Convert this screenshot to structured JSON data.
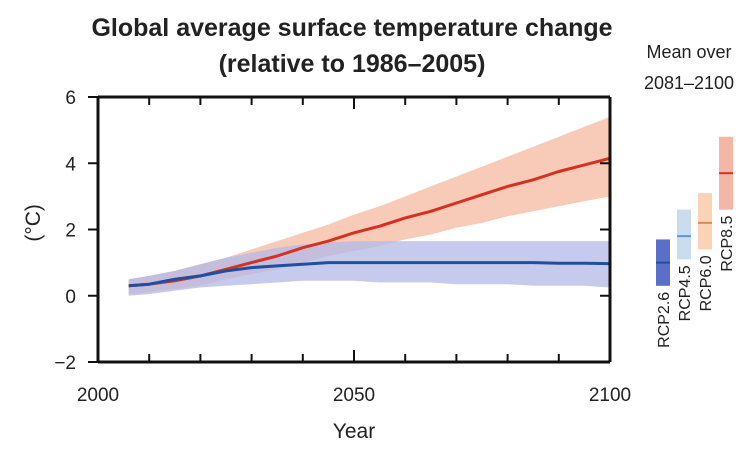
{
  "chart_data": {
    "type": "line",
    "title": "Global average surface temperature change",
    "subtitle": "(relative to 1986–2005)",
    "xlabel": "Year",
    "ylabel": "(°C)",
    "xlim": [
      2000,
      2100
    ],
    "ylim": [
      -2,
      6
    ],
    "x_ticks": [
      2000,
      2050,
      2100
    ],
    "y_ticks": [
      -2,
      0,
      2,
      4,
      6
    ],
    "series": [
      {
        "name": "RCP8.5",
        "color": "#d7301f",
        "band_color": "#f6b9a2",
        "x": [
          2006,
          2010,
          2015,
          2020,
          2025,
          2030,
          2035,
          2040,
          2045,
          2050,
          2055,
          2060,
          2065,
          2070,
          2075,
          2080,
          2085,
          2090,
          2095,
          2100
        ],
        "mean": [
          0.3,
          0.35,
          0.45,
          0.6,
          0.8,
          1.0,
          1.2,
          1.45,
          1.65,
          1.9,
          2.1,
          2.35,
          2.55,
          2.8,
          3.05,
          3.3,
          3.5,
          3.75,
          3.95,
          4.15
        ],
        "lower": [
          0.05,
          0.1,
          0.2,
          0.3,
          0.5,
          0.65,
          0.8,
          1.0,
          1.2,
          1.35,
          1.5,
          1.7,
          1.85,
          2.05,
          2.2,
          2.4,
          2.55,
          2.7,
          2.85,
          3.0
        ],
        "upper": [
          0.5,
          0.6,
          0.75,
          0.95,
          1.15,
          1.4,
          1.65,
          1.9,
          2.15,
          2.45,
          2.7,
          3.0,
          3.3,
          3.6,
          3.9,
          4.2,
          4.5,
          4.8,
          5.1,
          5.4
        ]
      },
      {
        "name": "RCP2.6",
        "color": "#1f4fa0",
        "band_color": "#b3b9e8",
        "x": [
          2006,
          2010,
          2015,
          2020,
          2025,
          2030,
          2035,
          2040,
          2045,
          2050,
          2055,
          2060,
          2065,
          2070,
          2075,
          2080,
          2085,
          2090,
          2095,
          2100
        ],
        "mean": [
          0.3,
          0.35,
          0.5,
          0.6,
          0.75,
          0.85,
          0.9,
          0.95,
          1.0,
          1.0,
          1.0,
          1.0,
          1.0,
          1.0,
          1.0,
          1.0,
          1.0,
          0.98,
          0.98,
          0.97
        ],
        "lower": [
          0.0,
          0.05,
          0.15,
          0.25,
          0.3,
          0.35,
          0.4,
          0.45,
          0.45,
          0.45,
          0.4,
          0.4,
          0.4,
          0.35,
          0.35,
          0.35,
          0.3,
          0.3,
          0.3,
          0.25
        ],
        "upper": [
          0.5,
          0.6,
          0.75,
          0.95,
          1.15,
          1.3,
          1.45,
          1.55,
          1.6,
          1.65,
          1.65,
          1.65,
          1.65,
          1.65,
          1.65,
          1.65,
          1.65,
          1.65,
          1.65,
          1.65
        ]
      }
    ],
    "side_panel": {
      "title_line1": "Mean over",
      "title_line2": "2081–2100",
      "bars": [
        {
          "name": "RCP2.6",
          "mean": 1.0,
          "low": 0.3,
          "high": 1.7,
          "color": "#5a6fc8",
          "line_color": "#1f4fa0"
        },
        {
          "name": "RCP4.5",
          "mean": 1.8,
          "low": 1.1,
          "high": 2.6,
          "color": "#c9dcf0",
          "line_color": "#5a97d4"
        },
        {
          "name": "RCP6.0",
          "mean": 2.2,
          "low": 1.4,
          "high": 3.1,
          "color": "#fad3b6",
          "line_color": "#e08a4c"
        },
        {
          "name": "RCP8.5",
          "mean": 3.7,
          "low": 2.6,
          "high": 4.8,
          "color": "#f4b7a6",
          "line_color": "#d7301f"
        }
      ]
    }
  }
}
